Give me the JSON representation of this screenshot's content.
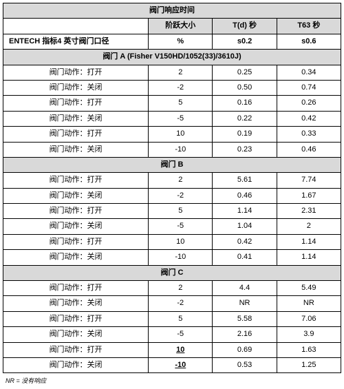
{
  "table": {
    "title": "阀门响应时间",
    "columns": {
      "c2": "阶跃大小",
      "c3": "T(d) 秒",
      "c4": "T63 秒"
    },
    "baseline": {
      "label": "ENTECH 指标4 英寸阀门口径",
      "c2": "%",
      "c3": "s0.2",
      "c4": "s0.6"
    },
    "action_labels": {
      "open": "阀门动作：打开",
      "close": "阀门动作：关闭"
    },
    "sections": [
      {
        "heading": "阀门 A (Fisher V150HD/1052(33)/3610J)",
        "rows": [
          {
            "action": "open",
            "step": "2",
            "td": "0.25",
            "t63": "0.34"
          },
          {
            "action": "close",
            "step": "-2",
            "td": "0.50",
            "t63": "0.74"
          },
          {
            "action": "open",
            "step": "5",
            "td": "0.16",
            "t63": "0.26"
          },
          {
            "action": "close",
            "step": "-5",
            "td": "0.22",
            "t63": "0.42"
          },
          {
            "action": "open",
            "step": "10",
            "td": "0.19",
            "t63": "0.33"
          },
          {
            "action": "close",
            "step": "-10",
            "td": "0.23",
            "t63": "0.46"
          }
        ]
      },
      {
        "heading": "阀门 B",
        "rows": [
          {
            "action": "open",
            "step": "2",
            "td": "5.61",
            "t63": "7.74"
          },
          {
            "action": "close",
            "step": "-2",
            "td": "0.46",
            "t63": "1.67"
          },
          {
            "action": "open",
            "step": "5",
            "td": "1.14",
            "t63": "2.31"
          },
          {
            "action": "close",
            "step": "-5",
            "td": "1.04",
            "t63": "2"
          },
          {
            "action": "open",
            "step": "10",
            "td": "0.42",
            "t63": "1.14"
          },
          {
            "action": "close",
            "step": "-10",
            "td": "0.41",
            "t63": "1.14"
          }
        ]
      },
      {
        "heading": "阀门 C",
        "rows": [
          {
            "action": "open",
            "step": "2",
            "td": "4.4",
            "t63": "5.49"
          },
          {
            "action": "close",
            "step": "-2",
            "td": "NR",
            "t63": "NR"
          },
          {
            "action": "open",
            "step": "5",
            "td": "5.58",
            "t63": "7.06"
          },
          {
            "action": "close",
            "step": "-5",
            "td": "2.16",
            "t63": "3.9"
          },
          {
            "action": "open",
            "step": "10",
            "td": "0.69",
            "t63": "1.63",
            "step_underline": true
          },
          {
            "action": "close",
            "step": "-10",
            "td": "0.53",
            "t63": "1.25",
            "step_underline": true
          }
        ]
      }
    ],
    "footnote": "NR = 没有响应"
  },
  "style": {
    "header_bg": "#d9d9d9",
    "border_color": "#000000",
    "body_bg": "#ffffff",
    "font_size_cell": 11,
    "font_size_footnote": 9
  }
}
